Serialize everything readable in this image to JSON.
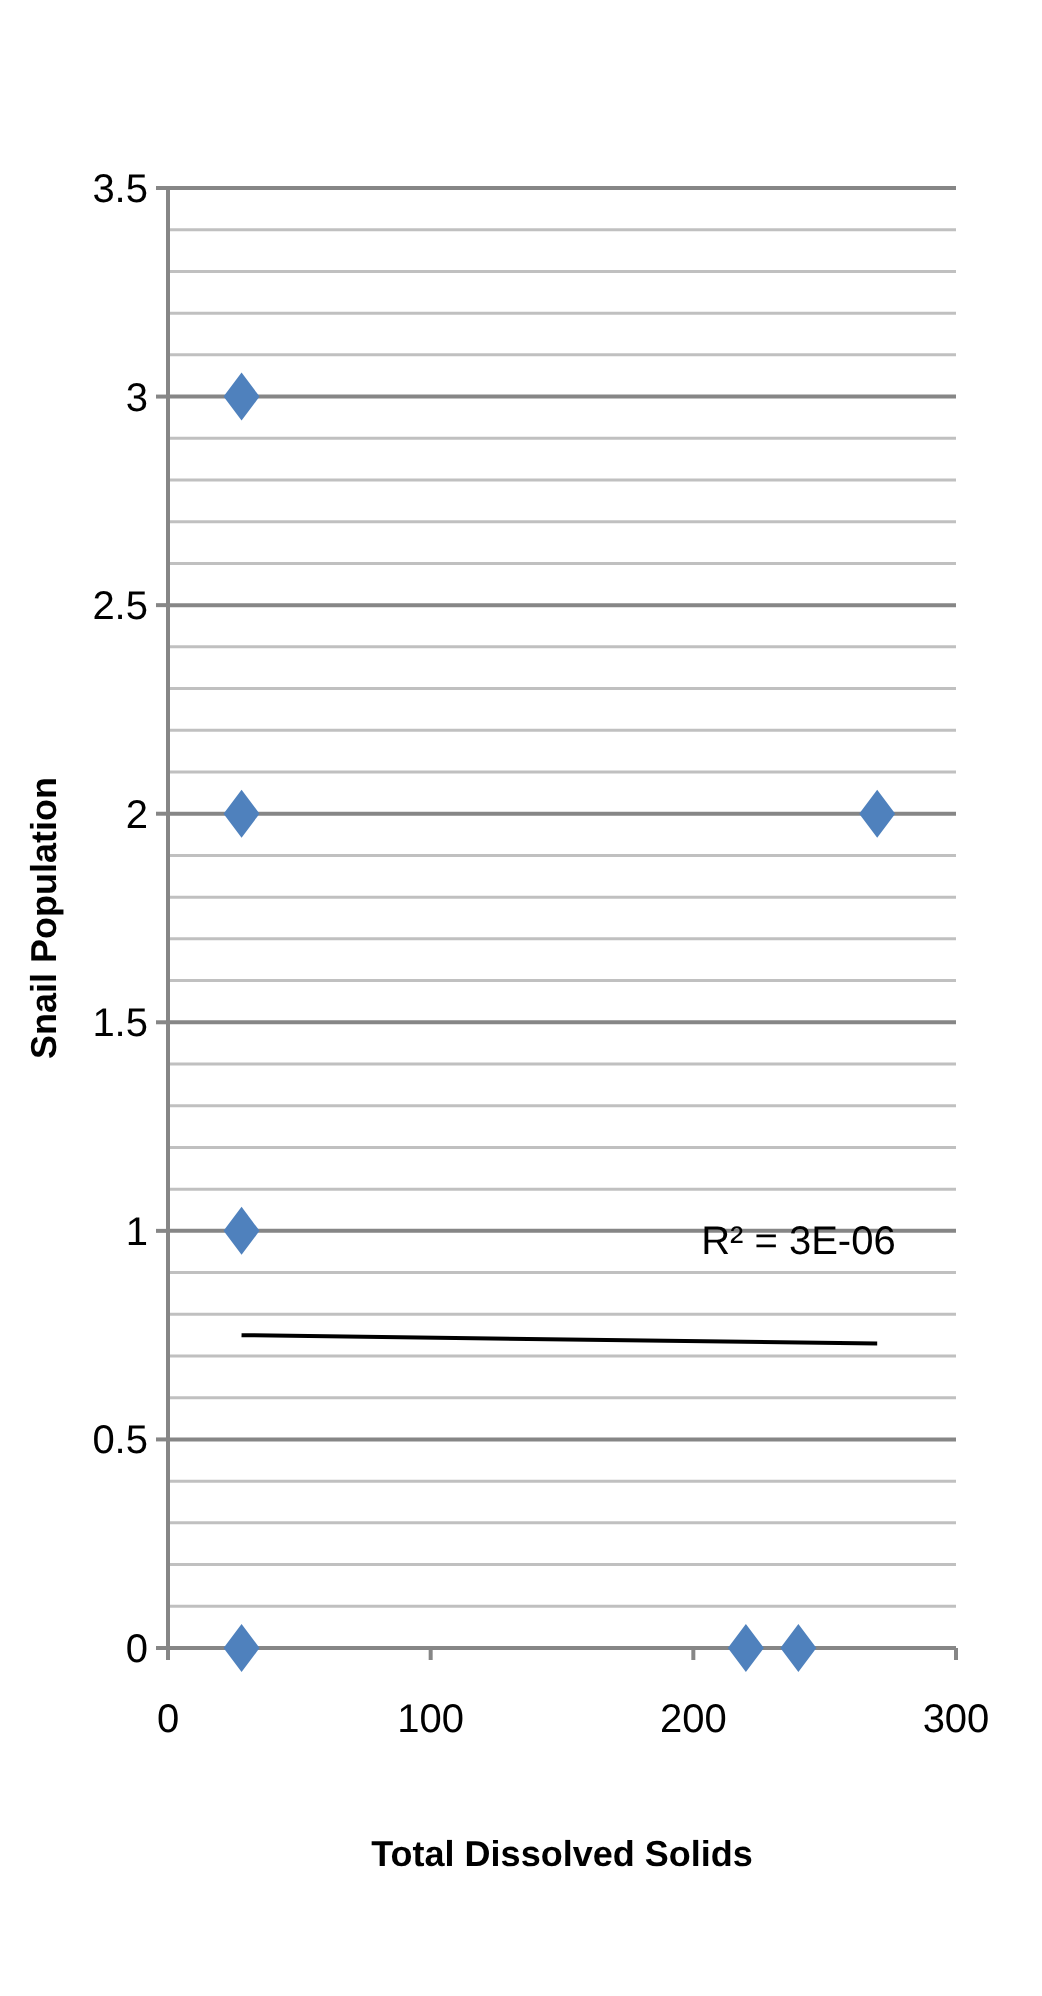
{
  "chart_data": {
    "type": "scatter",
    "xlabel": "Total Dissolved Solids",
    "ylabel": "Snail Population",
    "xlim": [
      0,
      300
    ],
    "xticks": [
      0,
      100,
      200,
      300
    ],
    "ylim": [
      0,
      3.5
    ],
    "yticks": [
      0,
      {
        "value": 0.1,
        "label": null
      },
      {
        "value": 0.2,
        "label": null
      },
      {
        "value": 0.3,
        "label": null
      },
      {
        "value": 0.4,
        "label": null
      },
      0.5,
      {
        "value": 0.6,
        "label": null
      },
      {
        "value": 0.7,
        "label": null
      },
      {
        "value": 0.8,
        "label": null
      },
      {
        "value": 0.9,
        "label": null
      },
      1,
      {
        "value": 1.1,
        "label": null
      },
      {
        "value": 1.2,
        "label": null
      },
      {
        "value": 1.3,
        "label": null
      },
      {
        "value": 1.4,
        "label": null
      },
      1.5,
      {
        "value": 1.6,
        "label": null
      },
      {
        "value": 1.7,
        "label": null
      },
      {
        "value": 1.8,
        "label": null
      },
      {
        "value": 1.9,
        "label": null
      },
      2,
      {
        "value": 2.1,
        "label": null
      },
      {
        "value": 2.2,
        "label": null
      },
      {
        "value": 2.3,
        "label": null
      },
      {
        "value": 2.4,
        "label": null
      },
      2.5,
      {
        "value": 2.6,
        "label": null
      },
      {
        "value": 2.7,
        "label": null
      },
      {
        "value": 2.8,
        "label": null
      },
      {
        "value": 2.9,
        "label": null
      },
      3,
      {
        "value": 3.1,
        "label": null
      },
      {
        "value": 3.2,
        "label": null
      },
      {
        "value": 3.3,
        "label": null
      },
      {
        "value": 3.4,
        "label": null
      },
      3.5
    ],
    "grid": "y",
    "marker": "diamond",
    "series": [
      {
        "color": "#4f81bd",
        "x": [
          28,
          28,
          28,
          28,
          220,
          240,
          270
        ],
        "values": [
          3,
          2,
          1,
          0,
          0,
          0,
          2
        ]
      },
      {
        "type": "line",
        "color": "#000000",
        "marker": "none",
        "x": [
          28,
          270
        ],
        "values": [
          0.75,
          0.73
        ]
      }
    ],
    "annotations": [
      "R² = 3E-06"
    ]
  }
}
